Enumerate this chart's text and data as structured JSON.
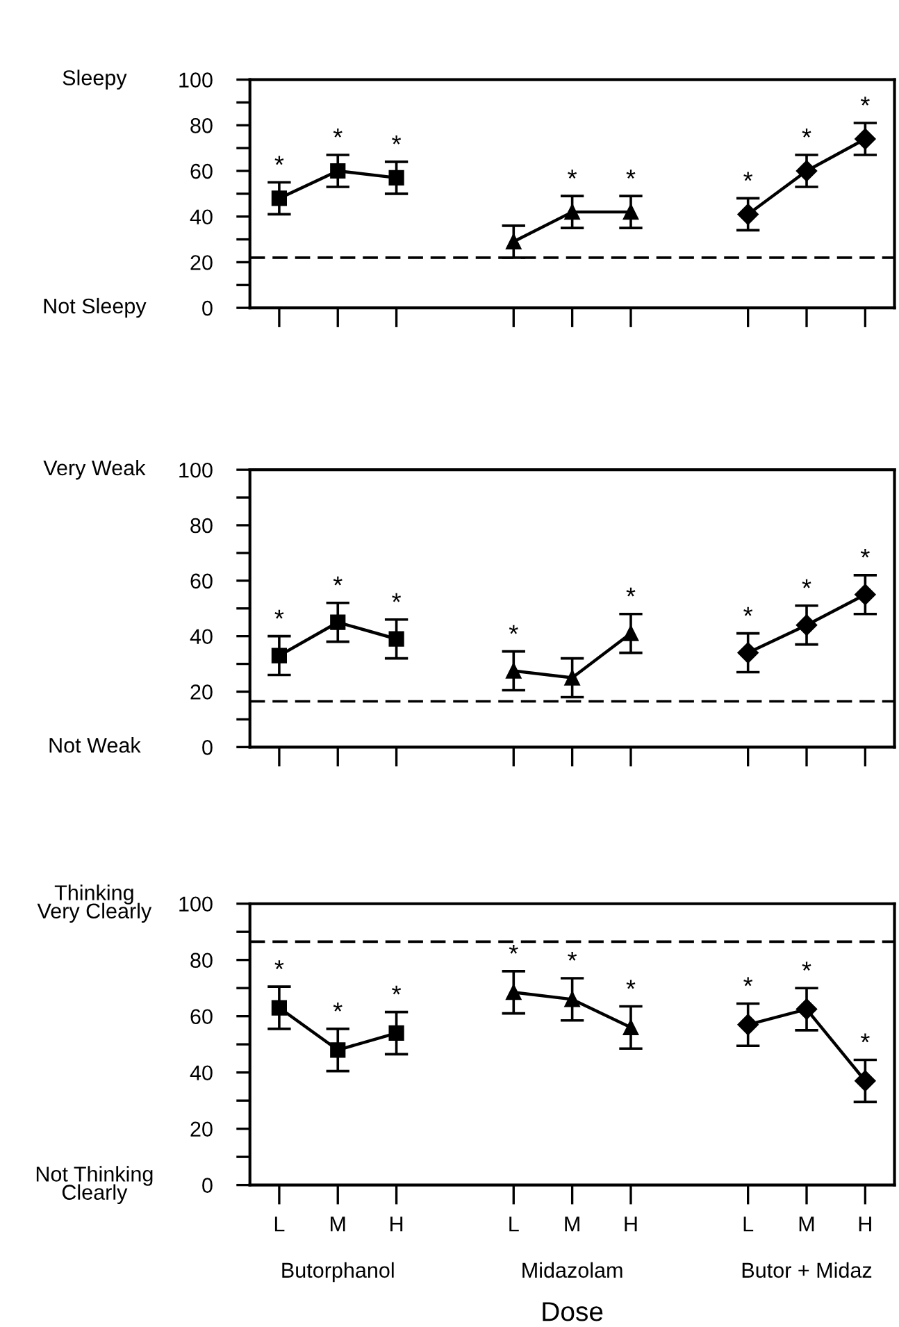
{
  "chart_data": [
    {
      "type": "line",
      "categories": [
        null,
        null,
        null,
        null,
        null,
        null,
        null,
        null,
        null,
        null,
        null
      ],
      "series": [
        {
          "color": "#000000",
          "marker": "square",
          "values": [
            48,
            60,
            57,
            null,
            null,
            null,
            null,
            null,
            null,
            null,
            null
          ],
          "errors": [
            7,
            7,
            7,
            null,
            null,
            null,
            null,
            null,
            null,
            null,
            null
          ],
          "value_labels": [
            "*",
            "*",
            "*",
            null,
            null,
            null,
            null,
            null,
            null,
            null,
            null
          ]
        },
        {
          "color": "#000000",
          "marker": "triangle",
          "values": [
            null,
            null,
            null,
            null,
            29,
            42,
            42,
            null,
            null,
            null,
            null
          ],
          "errors": [
            null,
            null,
            null,
            null,
            7,
            7,
            7,
            null,
            null,
            null,
            null
          ],
          "value_labels": [
            null,
            null,
            null,
            null,
            null,
            "*",
            "*",
            null,
            null,
            null,
            null
          ]
        },
        {
          "color": "#000000",
          "marker": "diamond",
          "values": [
            null,
            null,
            null,
            null,
            null,
            null,
            null,
            null,
            41,
            60,
            74
          ],
          "errors": [
            null,
            null,
            null,
            null,
            null,
            null,
            null,
            null,
            7,
            7,
            7
          ],
          "value_labels": [
            null,
            null,
            null,
            null,
            null,
            null,
            null,
            null,
            "*",
            "*",
            "*"
          ]
        }
      ],
      "ylim": [
        0,
        100
      ],
      "yticks": [
        0,
        {
          "value": 10,
          "label": null
        },
        20,
        {
          "value": 30,
          "label": null
        },
        40,
        {
          "value": 50,
          "label": null
        },
        60,
        {
          "value": 70,
          "label": null
        },
        80,
        {
          "value": 90,
          "label": null
        },
        100
      ],
      "tick_labels": "y",
      "line_style": "solid",
      "ref_lines": [
        {
          "axis": "y",
          "value": 22,
          "label": null,
          "color": "#000000",
          "line_style": "dashed"
        }
      ],
      "annotations": [
        "Sleepy",
        "Not Sleepy"
      ]
    },
    {
      "type": "line",
      "categories": [
        null,
        null,
        null,
        null,
        null,
        null,
        null,
        null,
        null,
        null,
        null
      ],
      "series": [
        {
          "color": "#000000",
          "marker": "square",
          "values": [
            33,
            45,
            39,
            null,
            null,
            null,
            null,
            null,
            null,
            null,
            null
          ],
          "errors": [
            7,
            7,
            7,
            null,
            null,
            null,
            null,
            null,
            null,
            null,
            null
          ],
          "value_labels": [
            "*",
            "*",
            "*",
            null,
            null,
            null,
            null,
            null,
            null,
            null,
            null
          ]
        },
        {
          "color": "#000000",
          "marker": "triangle",
          "values": [
            null,
            null,
            null,
            null,
            27.5,
            25,
            41,
            null,
            null,
            null,
            null
          ],
          "errors": [
            null,
            null,
            null,
            null,
            7,
            7,
            7,
            null,
            null,
            null,
            null
          ],
          "value_labels": [
            null,
            null,
            null,
            null,
            "*",
            null,
            "*",
            null,
            null,
            null,
            null
          ]
        },
        {
          "color": "#000000",
          "marker": "diamond",
          "values": [
            null,
            null,
            null,
            null,
            null,
            null,
            null,
            null,
            34,
            44,
            55
          ],
          "errors": [
            null,
            null,
            null,
            null,
            null,
            null,
            null,
            null,
            7,
            7,
            7
          ],
          "value_labels": [
            null,
            null,
            null,
            null,
            null,
            null,
            null,
            null,
            "*",
            "*",
            "*"
          ]
        }
      ],
      "ylim": [
        0,
        100
      ],
      "yticks": [
        0,
        {
          "value": 10,
          "label": null
        },
        20,
        {
          "value": 30,
          "label": null
        },
        40,
        {
          "value": 50,
          "label": null
        },
        60,
        {
          "value": 70,
          "label": null
        },
        80,
        {
          "value": 90,
          "label": null
        },
        100
      ],
      "tick_labels": "y",
      "line_style": "solid",
      "ref_lines": [
        {
          "axis": "y",
          "value": 16.5,
          "label": null,
          "color": "#000000",
          "line_style": "dashed"
        }
      ],
      "annotations": [
        "Very Weak",
        "Not Weak"
      ]
    },
    {
      "type": "line",
      "categories": [
        "L",
        "M",
        "H",
        null,
        "L",
        "M",
        "H",
        null,
        "L",
        "M",
        "H"
      ],
      "xlabel": "Dose",
      "series": [
        {
          "color": "#000000",
          "marker": "square",
          "values": [
            63,
            48,
            54,
            null,
            null,
            null,
            null,
            null,
            null,
            null,
            null
          ],
          "errors": [
            7.5,
            7.5,
            7.5,
            null,
            null,
            null,
            null,
            null,
            null,
            null,
            null
          ],
          "value_labels": [
            "*",
            "*",
            "*",
            null,
            null,
            null,
            null,
            null,
            null,
            null,
            null
          ]
        },
        {
          "color": "#000000",
          "marker": "triangle",
          "values": [
            null,
            null,
            null,
            null,
            68.5,
            66,
            56,
            null,
            null,
            null,
            null
          ],
          "errors": [
            null,
            null,
            null,
            null,
            7.5,
            7.5,
            7.5,
            null,
            null,
            null,
            null
          ],
          "value_labels": [
            null,
            null,
            null,
            null,
            "*",
            "*",
            "*",
            null,
            null,
            null,
            null
          ]
        },
        {
          "color": "#000000",
          "marker": "diamond",
          "values": [
            null,
            null,
            null,
            null,
            null,
            null,
            null,
            null,
            57,
            62.5,
            37
          ],
          "errors": [
            null,
            null,
            null,
            null,
            null,
            null,
            null,
            null,
            7.5,
            7.5,
            7.5
          ],
          "value_labels": [
            null,
            null,
            null,
            null,
            null,
            null,
            null,
            null,
            "*",
            "*",
            "*"
          ]
        }
      ],
      "ylim": [
        0,
        100
      ],
      "yticks": [
        0,
        {
          "value": 10,
          "label": null
        },
        20,
        {
          "value": 30,
          "label": null
        },
        40,
        {
          "value": 50,
          "label": null
        },
        60,
        {
          "value": 70,
          "label": null
        },
        80,
        {
          "value": 90,
          "label": null
        },
        100
      ],
      "line_style": "solid",
      "ref_lines": [
        {
          "axis": "y",
          "value": 86.5,
          "label": null,
          "color": "#000000",
          "line_style": "dashed"
        }
      ],
      "annotations": [
        "Thinking\nVery Clearly",
        "Not Thinking\nClearly",
        "Butorphanol",
        "Midazolam",
        "Butor + Midaz"
      ]
    }
  ]
}
